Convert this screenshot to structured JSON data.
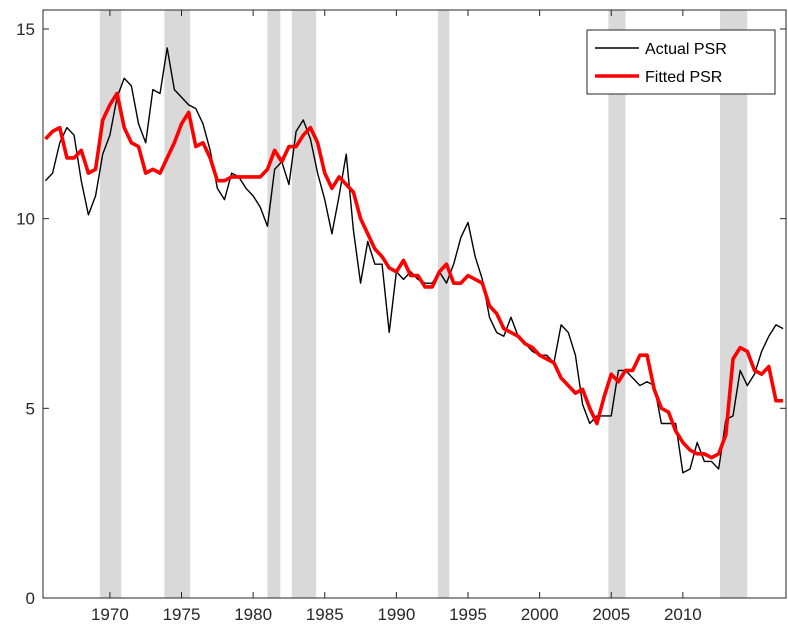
{
  "chart_data": {
    "type": "line",
    "x": [
      1965.5,
      1966,
      1966.5,
      1967,
      1967.5,
      1968,
      1968.5,
      1969,
      1969.5,
      1970,
      1970.5,
      1971,
      1971.5,
      1972,
      1972.5,
      1973,
      1973.5,
      1974,
      1974.5,
      1975,
      1975.5,
      1976,
      1976.5,
      1977,
      1977.5,
      1978,
      1978.5,
      1979,
      1979.5,
      1980,
      1980.5,
      1981,
      1981.5,
      1982,
      1982.5,
      1983,
      1983.5,
      1984,
      1984.5,
      1985,
      1985.5,
      1986,
      1986.5,
      1987,
      1987.5,
      1988,
      1988.5,
      1989,
      1989.5,
      1990,
      1990.5,
      1991,
      1991.5,
      1992,
      1992.5,
      1993,
      1993.5,
      1994,
      1994.5,
      1995,
      1995.5,
      1996,
      1996.5,
      1997,
      1997.5,
      1998,
      1998.5,
      1999,
      1999.5,
      2000,
      2000.5,
      2001,
      2001.5,
      2002,
      2002.5,
      2003,
      2003.5,
      2004,
      2004.5,
      2005,
      2005.5,
      2006,
      2006.5,
      2007,
      2007.5,
      2008,
      2008.5,
      2009,
      2009.5,
      2010,
      2010.5,
      2011,
      2011.5,
      2012,
      2012.5,
      2013,
      2013.5,
      2014,
      2014.5,
      2015,
      2015.5,
      2016,
      2016.5,
      2017
    ],
    "series": [
      {
        "name": "Actual PSR",
        "color": "#000000",
        "width": 1.4,
        "values": [
          11.0,
          11.2,
          12.0,
          12.4,
          12.2,
          11.0,
          10.1,
          10.6,
          11.7,
          12.2,
          13.2,
          13.7,
          13.5,
          12.5,
          12.0,
          13.4,
          13.3,
          14.5,
          13.4,
          13.2,
          13.0,
          12.9,
          12.5,
          11.8,
          10.8,
          10.5,
          11.2,
          11.1,
          10.8,
          10.6,
          10.3,
          9.8,
          11.3,
          11.5,
          10.9,
          12.3,
          12.6,
          12.1,
          11.2,
          10.5,
          9.6,
          10.6,
          11.7,
          9.7,
          8.3,
          9.4,
          8.8,
          8.8,
          7.0,
          8.6,
          8.4,
          8.6,
          8.4,
          8.3,
          8.3,
          8.6,
          8.3,
          8.8,
          9.5,
          9.9,
          9.0,
          8.4,
          7.4,
          7.0,
          6.9,
          7.4,
          6.9,
          6.7,
          6.5,
          6.4,
          6.4,
          6.2,
          7.2,
          7.0,
          6.4,
          5.1,
          4.6,
          4.8,
          4.8,
          4.8,
          6.0,
          6.0,
          5.8,
          5.6,
          5.7,
          5.6,
          4.6,
          4.6,
          4.6,
          3.3,
          3.4,
          4.1,
          3.6,
          3.6,
          3.4,
          4.7,
          4.8,
          6.0,
          5.6,
          5.9,
          6.5,
          6.9,
          7.2,
          7.1
        ]
      },
      {
        "name": "Fitted PSR",
        "color": "#ff0000",
        "width": 3.6,
        "values": [
          12.1,
          12.3,
          12.4,
          11.6,
          11.6,
          11.8,
          11.2,
          11.3,
          12.6,
          13.0,
          13.3,
          12.4,
          12.0,
          11.9,
          11.2,
          11.3,
          11.2,
          11.6,
          12.0,
          12.5,
          12.8,
          11.9,
          12.0,
          11.6,
          11.0,
          11.0,
          11.1,
          11.1,
          11.1,
          11.1,
          11.1,
          11.3,
          11.8,
          11.5,
          11.9,
          11.9,
          12.2,
          12.4,
          12.0,
          11.2,
          10.8,
          11.1,
          10.9,
          10.7,
          10.0,
          9.6,
          9.2,
          9.0,
          8.7,
          8.6,
          8.9,
          8.5,
          8.5,
          8.2,
          8.2,
          8.6,
          8.8,
          8.3,
          8.3,
          8.5,
          8.4,
          8.3,
          7.7,
          7.5,
          7.1,
          7.0,
          6.9,
          6.7,
          6.6,
          6.4,
          6.3,
          6.2,
          5.8,
          5.6,
          5.4,
          5.5,
          5.0,
          4.6,
          5.3,
          5.9,
          5.7,
          6.0,
          6.0,
          6.4,
          6.4,
          5.5,
          5.0,
          4.9,
          4.4,
          4.1,
          3.9,
          3.8,
          3.8,
          3.7,
          3.8,
          4.3,
          6.3,
          6.6,
          6.5,
          6.0,
          5.9,
          6.1,
          5.2,
          5.2
        ]
      }
    ],
    "shaded_periods": [
      [
        1969.3,
        1970.8
      ],
      [
        1973.8,
        1975.6
      ],
      [
        1981.0,
        1981.9
      ],
      [
        1982.7,
        1984.4
      ],
      [
        1992.9,
        1993.7
      ],
      [
        2004.8,
        2006.0
      ],
      [
        2012.6,
        2014.5
      ]
    ],
    "shade_color": "#d9d9d9",
    "xlim": [
      1965.33,
      2017.2
    ],
    "xticks": [
      1970,
      1975,
      1980,
      1985,
      1990,
      1995,
      2000,
      2005,
      2010
    ],
    "ylim": [
      0,
      15.5
    ],
    "yticks": [
      0,
      5,
      10,
      15
    ],
    "grid": false,
    "legend": "upper-right"
  }
}
